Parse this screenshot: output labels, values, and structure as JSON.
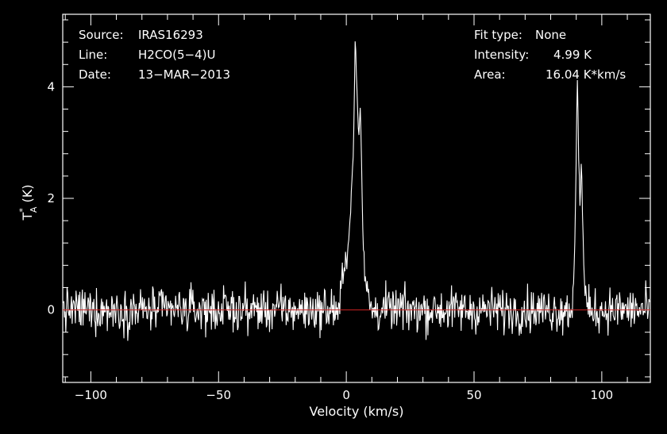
{
  "chart_data": {
    "type": "line",
    "xlabel": "Velocity (km/s)",
    "ylabel": "T*A (K)",
    "xlim": [
      -111,
      119
    ],
    "ylim": [
      -1.3,
      5.3
    ],
    "x_ticks": [
      -100,
      -50,
      0,
      50,
      100
    ],
    "y_ticks": [
      0,
      2,
      4
    ],
    "baseline": 0,
    "noise_rms": 0.28,
    "peaks": [
      {
        "x": [
          -2.5,
          -1.0,
          0.5,
          1.5,
          2.5,
          3.0,
          3.5,
          4.0,
          4.5,
          5.0,
          5.5,
          6.0,
          6.5,
          7.0,
          8.0,
          9.0
        ],
        "y": [
          0.3,
          0.8,
          1.0,
          1.6,
          2.5,
          3.4,
          4.99,
          4.2,
          3.5,
          3.1,
          3.8,
          2.6,
          1.4,
          0.8,
          0.4,
          0.2
        ]
      },
      {
        "x": [
          88.5,
          89.5,
          90.0,
          90.5,
          91.0,
          91.5,
          92.0,
          92.5,
          93.0,
          94.0
        ],
        "y": [
          0.2,
          1.2,
          2.8,
          4.3,
          2.5,
          1.9,
          2.8,
          1.6,
          0.7,
          0.2
        ]
      }
    ],
    "series": [
      {
        "values_summary": "noise around 0 K with peaks at ~4 km/s and ~91 km/s"
      }
    ],
    "grid": false,
    "legend": "none"
  },
  "info": {
    "source_label": "Source:",
    "source_value": "IRAS16293",
    "line_label": "Line:",
    "line_value": "H2CO(5−4)U",
    "date_label": "Date:",
    "date_value": "13−MAR−2013",
    "fit_label": "Fit type:",
    "fit_value": "None",
    "intensity_label": "Intensity:",
    "intensity_value": "4.99 K",
    "area_label": "Area:",
    "area_value": "16.04 K*km/s"
  },
  "colors": {
    "background": "#000000",
    "axes": "#ffffff",
    "spectrum": "#ffffff",
    "baseline": "#cc2222"
  }
}
